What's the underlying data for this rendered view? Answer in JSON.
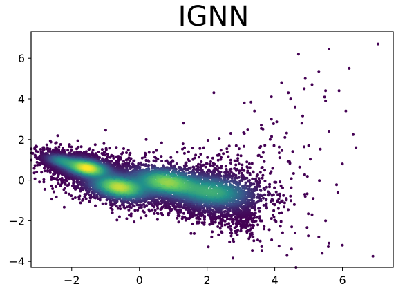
{
  "chart_data": {
    "type": "scatter",
    "title": "IGNN",
    "xlabel": "",
    "ylabel": "",
    "xlim": [
      -3.2,
      7.5
    ],
    "ylim": [
      -4.3,
      7.3
    ],
    "x_ticks": [
      -2,
      0,
      2,
      4,
      6
    ],
    "y_ticks": [
      -4,
      -2,
      0,
      2,
      4,
      6
    ],
    "x_tick_labels": [
      "−2",
      "0",
      "2",
      "4",
      "6"
    ],
    "y_tick_labels": [
      "−4",
      "−2",
      "0",
      "2",
      "4",
      "6"
    ],
    "grid": false,
    "colormap": [
      "#440154",
      "#3b528b",
      "#21918c",
      "#5ec962",
      "#fde725"
    ],
    "density_clusters": [
      {
        "x": -1.55,
        "y": 0.6,
        "sx": 0.35,
        "sy": 0.22,
        "weight": 0.28,
        "tilt": -0.25
      },
      {
        "x": -0.6,
        "y": -0.35,
        "sx": 0.45,
        "sy": 0.3,
        "weight": 0.25,
        "tilt": -0.25
      },
      {
        "x": 0.8,
        "y": -0.1,
        "sx": 0.55,
        "sy": 0.35,
        "weight": 0.22,
        "tilt": -0.2
      },
      {
        "x": 2.2,
        "y": -0.6,
        "sx": 0.6,
        "sy": 0.4,
        "weight": 0.15,
        "tilt": -0.1
      },
      {
        "x": -2.3,
        "y": 0.95,
        "sx": 0.25,
        "sy": 0.15,
        "weight": 0.1,
        "tilt": -0.3
      }
    ],
    "outlier_points": [
      [
        7.05,
        6.7
      ],
      [
        5.6,
        6.45
      ],
      [
        4.7,
        6.2
      ],
      [
        6.2,
        5.5
      ],
      [
        5.3,
        5.35
      ],
      [
        4.9,
        5.0
      ],
      [
        5.1,
        4.7
      ],
      [
        4.2,
        4.8
      ],
      [
        5.9,
        4.4
      ],
      [
        5.5,
        4.4
      ],
      [
        4.4,
        4.3
      ],
      [
        3.9,
        4.1
      ],
      [
        2.2,
        4.3
      ],
      [
        3.1,
        3.8
      ],
      [
        5.5,
        3.9
      ],
      [
        6.1,
        3.4
      ],
      [
        4.6,
        3.6
      ],
      [
        3.4,
        3.4
      ],
      [
        3.9,
        3.0
      ],
      [
        4.8,
        2.8
      ],
      [
        5.6,
        2.4
      ],
      [
        4.3,
        2.1
      ],
      [
        6.4,
        1.6
      ],
      [
        5.0,
        1.7
      ],
      [
        6.0,
        0.8
      ],
      [
        4.9,
        -0.8
      ],
      [
        4.5,
        -2.3
      ],
      [
        4.2,
        -1.6
      ],
      [
        5.1,
        -1.7
      ],
      [
        5.5,
        -2.0
      ],
      [
        5.3,
        -2.8
      ],
      [
        5.6,
        -3.1
      ],
      [
        6.0,
        -3.2
      ],
      [
        5.4,
        -3.6
      ],
      [
        6.9,
        -3.75
      ],
      [
        4.6,
        -2.6
      ],
      [
        3.5,
        -2.2
      ],
      [
        2.9,
        -1.9
      ],
      [
        2.4,
        -1.9
      ],
      [
        3.2,
        2.5
      ],
      [
        2.7,
        2.3
      ],
      [
        3.6,
        2.7
      ],
      [
        1.9,
        1.6
      ],
      [
        1.3,
        2.8
      ],
      [
        0.2,
        2.0
      ],
      [
        3.0,
        1.2
      ],
      [
        3.3,
        -2.4
      ],
      [
        4.0,
        -1.2
      ]
    ]
  }
}
